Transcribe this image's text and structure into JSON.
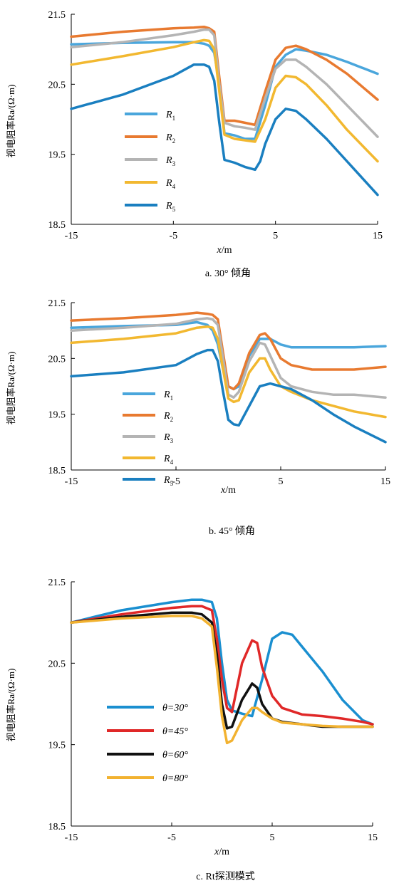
{
  "chart_data": [
    {
      "type": "line",
      "caption": "a. 30° 倾角",
      "xlabel_var": "x",
      "xlabel_unit": "/m",
      "ylabel": "视电阻率Ra/(Ω·m)",
      "xlim": [
        -15,
        15
      ],
      "ylim": [
        18.5,
        21.5
      ],
      "xticks": [
        "-15",
        "-5",
        "5",
        "15"
      ],
      "xtick_values": [
        -15,
        -5,
        5,
        15
      ],
      "yticks": [
        "21.5",
        "20.5",
        "19.5",
        "18.5"
      ],
      "ytick_values": [
        21.5,
        20.5,
        19.5,
        18.5
      ],
      "legend_position": "left",
      "series": [
        {
          "name": "R",
          "sub": "1",
          "color": "#4aa6dc",
          "x": [
            -15,
            -10,
            -5,
            -3,
            -2,
            -1.5,
            -1,
            -0.5,
            0,
            1,
            2,
            3,
            4,
            5,
            6,
            7,
            8,
            10,
            12,
            15
          ],
          "y": [
            21.07,
            21.09,
            21.1,
            21.1,
            21.08,
            21.05,
            20.95,
            20.5,
            19.8,
            19.77,
            19.72,
            19.72,
            20.2,
            20.75,
            20.92,
            21.0,
            20.98,
            20.92,
            20.82,
            20.65
          ]
        },
        {
          "name": "R",
          "sub": "2",
          "color": "#e87a30",
          "x": [
            -15,
            -10,
            -5,
            -3,
            -2,
            -1.5,
            -1,
            -0.5,
            0,
            1,
            2,
            3,
            4,
            5,
            6,
            7,
            8,
            10,
            12,
            15
          ],
          "y": [
            21.18,
            21.25,
            21.3,
            21.31,
            21.32,
            21.3,
            21.25,
            20.6,
            19.98,
            19.98,
            19.95,
            19.92,
            20.4,
            20.85,
            21.02,
            21.05,
            21.0,
            20.85,
            20.65,
            20.28
          ]
        },
        {
          "name": "R",
          "sub": "3",
          "color": "#b4b4b4",
          "x": [
            -15,
            -10,
            -5,
            -3,
            -2,
            -1.5,
            -1,
            -0.5,
            0,
            1,
            2,
            3,
            4,
            5,
            6,
            7,
            8,
            10,
            12,
            15
          ],
          "y": [
            21.03,
            21.1,
            21.2,
            21.25,
            21.28,
            21.28,
            21.2,
            20.5,
            19.95,
            19.9,
            19.88,
            19.85,
            20.3,
            20.72,
            20.85,
            20.85,
            20.75,
            20.5,
            20.2,
            19.75
          ]
        },
        {
          "name": "R",
          "sub": "4",
          "color": "#f2b830",
          "x": [
            -15,
            -10,
            -5,
            -3,
            -2,
            -1.5,
            -1,
            -0.5,
            0,
            1,
            2,
            3,
            4,
            5,
            6,
            7,
            8,
            10,
            12,
            15
          ],
          "y": [
            20.78,
            20.9,
            21.03,
            21.1,
            21.13,
            21.12,
            21.0,
            20.4,
            19.78,
            19.72,
            19.7,
            19.68,
            20.0,
            20.45,
            20.62,
            20.6,
            20.5,
            20.2,
            19.85,
            19.4
          ]
        },
        {
          "name": "R",
          "sub": "5",
          "color": "#1a7fc0",
          "x": [
            -15,
            -10,
            -5,
            -3,
            -2,
            -1.5,
            -1,
            -0.5,
            0,
            1,
            2,
            3,
            3.5,
            4,
            5,
            6,
            7,
            8,
            10,
            12,
            15
          ],
          "y": [
            20.15,
            20.35,
            20.62,
            20.78,
            20.78,
            20.75,
            20.55,
            19.95,
            19.42,
            19.38,
            19.32,
            19.28,
            19.4,
            19.65,
            20.0,
            20.15,
            20.12,
            20.0,
            19.72,
            19.4,
            18.92
          ]
        }
      ]
    },
    {
      "type": "line",
      "caption": "b. 45° 倾角",
      "xlabel_var": "x",
      "xlabel_unit": "/m",
      "ylabel": "视电阻率Ra/(Ω·m)",
      "xlim": [
        -15,
        15
      ],
      "ylim": [
        18.5,
        21.5
      ],
      "xticks": [
        "-15",
        "-5",
        "5",
        "15"
      ],
      "xtick_values": [
        -15,
        -5,
        5,
        15
      ],
      "yticks": [
        "21.5",
        "20.5",
        "19.5",
        "18.5"
      ],
      "ytick_values": [
        21.5,
        20.5,
        19.5,
        18.5
      ],
      "legend_position": "left",
      "series": [
        {
          "name": "R",
          "sub": "1",
          "color": "#4aa6dc",
          "x": [
            -15,
            -10,
            -5,
            -3,
            -2,
            -1.5,
            -1,
            -0.5,
            0,
            0.5,
            1,
            2,
            3,
            4,
            5,
            6,
            8,
            10,
            12,
            15
          ],
          "y": [
            21.05,
            21.08,
            21.1,
            21.15,
            21.1,
            21.0,
            20.75,
            20.3,
            20.0,
            19.95,
            20.0,
            20.55,
            20.85,
            20.85,
            20.75,
            20.7,
            20.7,
            20.7,
            20.7,
            20.72
          ]
        },
        {
          "name": "R",
          "sub": "2",
          "color": "#e87a30",
          "x": [
            -15,
            -10,
            -5,
            -3,
            -2,
            -1.5,
            -1,
            -0.5,
            0,
            0.5,
            1,
            2,
            3,
            3.5,
            4,
            5,
            6,
            8,
            10,
            12,
            15
          ],
          "y": [
            21.18,
            21.22,
            21.28,
            21.32,
            21.3,
            21.28,
            21.2,
            20.6,
            20.0,
            19.95,
            20.05,
            20.6,
            20.92,
            20.95,
            20.85,
            20.5,
            20.38,
            20.3,
            20.3,
            20.3,
            20.35
          ]
        },
        {
          "name": "R",
          "sub": "3",
          "color": "#b4b4b4",
          "x": [
            -15,
            -10,
            -5,
            -3,
            -2,
            -1.5,
            -1,
            -0.5,
            0,
            0.5,
            1,
            2,
            3,
            3.5,
            4,
            5,
            6,
            8,
            10,
            12,
            15
          ],
          "y": [
            21.0,
            21.05,
            21.12,
            21.2,
            21.22,
            21.2,
            21.1,
            20.5,
            19.85,
            19.8,
            19.9,
            20.45,
            20.78,
            20.75,
            20.55,
            20.15,
            20.0,
            19.9,
            19.85,
            19.85,
            19.8
          ]
        },
        {
          "name": "R",
          "sub": "4",
          "color": "#f2b830",
          "x": [
            -15,
            -10,
            -5,
            -3,
            -2,
            -1.5,
            -1,
            -0.5,
            0,
            0.5,
            1,
            2,
            3,
            3.5,
            4,
            5,
            6,
            8,
            10,
            12,
            15
          ],
          "y": [
            20.78,
            20.85,
            20.95,
            21.05,
            21.07,
            21.05,
            20.85,
            20.3,
            19.78,
            19.72,
            19.75,
            20.25,
            20.5,
            20.5,
            20.3,
            20.0,
            19.9,
            19.75,
            19.65,
            19.55,
            19.45
          ]
        },
        {
          "name": "R",
          "sub": "5",
          "color": "#1a7fc0",
          "x": [
            -15,
            -10,
            -5,
            -3,
            -2,
            -1.5,
            -1,
            -0.5,
            0,
            0.5,
            1,
            2,
            3,
            4,
            5,
            6,
            8,
            10,
            12,
            15
          ],
          "y": [
            20.18,
            20.25,
            20.38,
            20.58,
            20.65,
            20.65,
            20.45,
            19.9,
            19.4,
            19.32,
            19.3,
            19.65,
            20.0,
            20.05,
            20.0,
            19.95,
            19.75,
            19.5,
            19.28,
            19.0
          ]
        }
      ]
    },
    {
      "type": "line",
      "caption": "c. Rt探测模式",
      "xlabel_var": "x",
      "xlabel_unit": "/m",
      "ylabel": "视电阻率Ra/(Ω·m)",
      "xlim": [
        -15,
        15
      ],
      "ylim": [
        18.5,
        21.5
      ],
      "xticks": [
        "-15",
        "-5",
        "5",
        "15"
      ],
      "xtick_values": [
        -15,
        -5,
        5,
        15
      ],
      "yticks": [
        "21.5",
        "20.5",
        "19.5",
        "18.5"
      ],
      "ytick_values": [
        21.5,
        20.5,
        19.5,
        18.5
      ],
      "legend_position": "left",
      "series": [
        {
          "name": "θ=30°",
          "color": "#1a8fd0",
          "x": [
            -15,
            -10,
            -5,
            -3,
            -2,
            -1,
            -0.5,
            0,
            0.5,
            1,
            2,
            3,
            4,
            5,
            6,
            7,
            8,
            10,
            12,
            14,
            15
          ],
          "y": [
            21.0,
            21.15,
            21.25,
            21.28,
            21.28,
            21.25,
            21.05,
            20.5,
            20.05,
            19.92,
            19.88,
            19.85,
            20.3,
            20.8,
            20.88,
            20.85,
            20.7,
            20.4,
            20.05,
            19.8,
            19.75
          ]
        },
        {
          "name": "θ=45°",
          "color": "#e02828",
          "x": [
            -15,
            -10,
            -5,
            -3,
            -2,
            -1,
            -0.5,
            0,
            0.5,
            1,
            2,
            3,
            3.5,
            4,
            5,
            6,
            8,
            10,
            12,
            14,
            15
          ],
          "y": [
            21.0,
            21.1,
            21.18,
            21.2,
            21.2,
            21.15,
            20.8,
            20.3,
            19.95,
            19.9,
            20.5,
            20.78,
            20.75,
            20.45,
            20.1,
            19.95,
            19.87,
            19.85,
            19.82,
            19.78,
            19.75
          ]
        },
        {
          "name": "θ=60°",
          "color": "#111111",
          "x": [
            -15,
            -10,
            -5,
            -3,
            -2,
            -1,
            -0.5,
            0,
            0.5,
            1,
            2,
            3,
            3.5,
            4,
            5,
            6,
            8,
            10,
            12,
            14,
            15
          ],
          "y": [
            21.0,
            21.07,
            21.12,
            21.12,
            21.1,
            21.0,
            20.6,
            20.0,
            19.7,
            19.72,
            20.05,
            20.25,
            20.2,
            20.0,
            19.82,
            19.78,
            19.75,
            19.72,
            19.72,
            19.72,
            19.72
          ]
        },
        {
          "name": "θ=80°",
          "color": "#f2b230",
          "x": [
            -15,
            -10,
            -5,
            -3,
            -2,
            -1,
            -0.5,
            0,
            0.5,
            1,
            2,
            3,
            3.5,
            4,
            5,
            6,
            8,
            10,
            12,
            14,
            15
          ],
          "y": [
            21.0,
            21.05,
            21.08,
            21.08,
            21.05,
            20.95,
            20.45,
            19.85,
            19.52,
            19.55,
            19.8,
            19.95,
            19.95,
            19.9,
            19.82,
            19.77,
            19.75,
            19.73,
            19.72,
            19.72,
            19.72
          ]
        }
      ]
    }
  ]
}
